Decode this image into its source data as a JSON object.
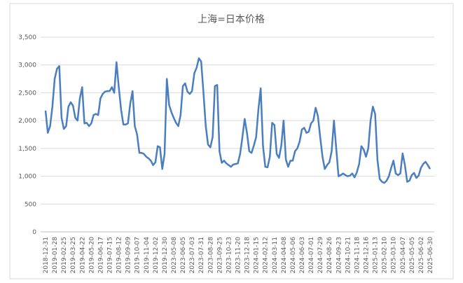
{
  "chart_data": {
    "type": "line",
    "title": "上海=日本价格",
    "color": "#4a7ebf",
    "categories": [
      "2018-12-31",
      null,
      null,
      null,
      "2019-01-28",
      null,
      null,
      null,
      "2019-02-25",
      null,
      null,
      null,
      "2019-03-25",
      null,
      null,
      null,
      "2019-04-22",
      null,
      null,
      null,
      "2019-05-20",
      null,
      null,
      null,
      "2019-06-17",
      null,
      null,
      null,
      "2019-07-15",
      null,
      null,
      null,
      "2019-08-12",
      null,
      null,
      null,
      "2019-09-09",
      null,
      null,
      null,
      "2019-10-07",
      null,
      null,
      null,
      "2019-11-04",
      null,
      null,
      null,
      "2019-12-02",
      null,
      null,
      null,
      "2019-12-30",
      null,
      null,
      null,
      "2023-05-08",
      null,
      null,
      null,
      "2023-06-05",
      null,
      null,
      null,
      "2023-07-03",
      null,
      null,
      null,
      "2023-07-31",
      null,
      null,
      null,
      "2023-08-28",
      null,
      null,
      null,
      "2023-09-25",
      null,
      null,
      null,
      "2023-10-23",
      null,
      null,
      null,
      "2023-11-20",
      null,
      null,
      null,
      "2023-12-18",
      null,
      null,
      null,
      "2024-01-15",
      null,
      null,
      null,
      "2024-02-12",
      null,
      null,
      null,
      "2024-03-11",
      null,
      null,
      null,
      "2024-04-08",
      null,
      null,
      null,
      "2024-05-06",
      null,
      null,
      null,
      "2024-06-03",
      null,
      null,
      null,
      "2024-07-01",
      null,
      null,
      null,
      "2024-07-29",
      null,
      null,
      null,
      "2024-08-26",
      null,
      null,
      null,
      "2024-09-23",
      null,
      null,
      null,
      "2024-10-21",
      null,
      null,
      null,
      "2024-11-18",
      null,
      null,
      null,
      "2024-12-16",
      null,
      null,
      null,
      "2025-01-13",
      null,
      null,
      null,
      "2025-02-10",
      null,
      null,
      null,
      "2025-03-10",
      null,
      null,
      null,
      "2025-04-07",
      null,
      null,
      null,
      "2025-05-05",
      null,
      null,
      null,
      "2025-06-02",
      null,
      null,
      null,
      "2025-06-30"
    ],
    "values": [
      2180,
      1780,
      1900,
      2250,
      2750,
      2930,
      2980,
      2050,
      1850,
      1900,
      2250,
      2330,
      2270,
      2050,
      2000,
      2400,
      2600,
      1950,
      1960,
      1900,
      1950,
      2100,
      2120,
      2100,
      2400,
      2480,
      2520,
      2530,
      2530,
      2600,
      2500,
      3050,
      2600,
      2200,
      1930,
      1930,
      1950,
      2300,
      2530,
      1900,
      1750,
      1420,
      1420,
      1400,
      1350,
      1320,
      1280,
      1200,
      1250,
      1540,
      1520,
      1130,
      1400,
      2750,
      2280,
      2150,
      2050,
      1960,
      1900,
      2100,
      2620,
      2670,
      2520,
      2480,
      2530,
      2850,
      2950,
      3120,
      3060,
      2500,
      1900,
      1570,
      1520,
      1700,
      2620,
      2640,
      1450,
      1240,
      1280,
      1230,
      1200,
      1170,
      1210,
      1220,
      1230,
      1400,
      1700,
      2030,
      1780,
      1450,
      1420,
      1550,
      1700,
      2200,
      2580,
      1550,
      1170,
      1160,
      1350,
      1960,
      1920,
      1400,
      1330,
      1550,
      2000,
      1300,
      1170,
      1280,
      1280,
      1450,
      1500,
      1620,
      1840,
      1870,
      1780,
      1800,
      1950,
      2000,
      2230,
      2080,
      1700,
      1350,
      1130,
      1200,
      1250,
      1450,
      2000,
      1500,
      1000,
      1020,
      1050,
      1020,
      1000,
      1010,
      1050,
      980,
      1070,
      1220,
      1540,
      1480,
      1350,
      1500,
      2000,
      2250,
      2120,
      1300,
      950,
      900,
      880,
      920,
      1000,
      1150,
      1280,
      1050,
      1020,
      1050,
      1410,
      1200,
      900,
      920,
      1020,
      1060,
      970,
      1010,
      1150,
      1220,
      1260,
      1200,
      1130
    ],
    "ylim": [
      0,
      3500
    ],
    "yticks": [
      0,
      {
        "value": 500,
        "label": "500"
      },
      {
        "value": 1000,
        "label": "1,000"
      },
      {
        "value": 1500,
        "label": "1,500"
      },
      {
        "value": 2000,
        "label": "2,000"
      },
      {
        "value": 2500,
        "label": "2,500"
      },
      {
        "value": 3000,
        "label": "3,000"
      },
      {
        "value": 3500,
        "label": "3,500"
      }
    ],
    "grid": true
  }
}
